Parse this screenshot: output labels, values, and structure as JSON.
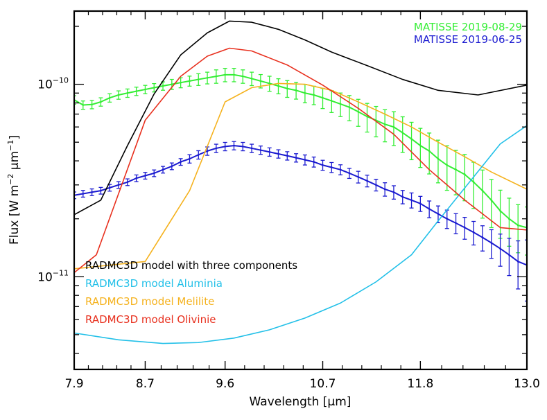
{
  "chart_data": {
    "type": "line",
    "xlabel": "Wavelength [μm]",
    "ylabel_parts": [
      "Flux [W m",
      "−2",
      " μm",
      "−1",
      "]"
    ],
    "xscale": "linear",
    "yscale": "log",
    "xlim": [
      7.9,
      13.0
    ],
    "ylim": [
      3.3e-12,
      2.4e-10
    ],
    "x_ticks": [
      7.9,
      8.7,
      9.6,
      10.7,
      11.8,
      13.0
    ],
    "x_tick_labels": [
      "7.9",
      "8.7",
      "9.6",
      "10.7",
      "11.8",
      "13.0"
    ],
    "y_major_ticks": [
      1e-11,
      1e-10
    ],
    "y_tick_labels": [
      {
        "value": 1e-11,
        "base": "10",
        "exp": "−11"
      },
      {
        "value": 1e-10,
        "base": "10",
        "exp": "−10"
      }
    ],
    "legend_top_right": [
      {
        "label": "MATISSE 2019-08-29",
        "color": "#33ee33"
      },
      {
        "label": "MATISSE 2019-06-25",
        "color": "#1a1ad0"
      }
    ],
    "legend_bottom_left": [
      {
        "label": "RADMC3D model with three components",
        "color": "#000000"
      },
      {
        "label": "RADMC3D model Aluminia",
        "color": "#22c0e8"
      },
      {
        "label": "RADMC3D model Melilite",
        "color": "#f5b21e"
      },
      {
        "label": "RADMC3D model Olivinie",
        "color": "#e8301e"
      }
    ],
    "series": [
      {
        "name": "RADMC3D model with three components",
        "color": "#000000",
        "x": [
          7.9,
          8.2,
          8.5,
          8.8,
          9.1,
          9.4,
          9.65,
          9.9,
          10.2,
          10.5,
          10.8,
          11.2,
          11.6,
          12.0,
          12.45,
          13.0
        ],
        "y": [
          2.1e-11,
          2.5e-11,
          4.8e-11,
          8.9e-11,
          1.42e-10,
          1.85e-10,
          2.13e-10,
          2.1e-10,
          1.93e-10,
          1.7e-10,
          1.47e-10,
          1.25e-10,
          1.06e-10,
          9.3e-11,
          8.8e-11,
          9.9e-11
        ]
      },
      {
        "name": "RADMC3D model Aluminia",
        "color": "#22c0e8",
        "x": [
          7.9,
          8.4,
          8.9,
          9.3,
          9.7,
          10.1,
          10.5,
          10.9,
          11.3,
          11.7,
          12.0,
          12.4,
          12.7,
          13.0
        ],
        "y": [
          5.1e-12,
          4.7e-12,
          4.5e-12,
          4.55e-12,
          4.8e-12,
          5.3e-12,
          6.1e-12,
          7.3e-12,
          9.4e-12,
          1.3e-11,
          1.95e-11,
          3.3e-11,
          4.9e-11,
          6.1e-11
        ]
      },
      {
        "name": "RADMC3D model Melilite",
        "color": "#f5b21e",
        "x": [
          7.9,
          8.7,
          9.2,
          9.6,
          9.9,
          10.2,
          10.5,
          10.8,
          11.1,
          11.4,
          11.7,
          12.0,
          12.3,
          12.6,
          13.0
        ],
        "y": [
          1.1e-11,
          1.2e-11,
          2.8e-11,
          8.1e-11,
          9.6e-11,
          1.01e-10,
          1e-10,
          9.3e-11,
          8.1e-11,
          7e-11,
          6e-11,
          5e-11,
          4.2e-11,
          3.5e-11,
          2.85e-11
        ]
      },
      {
        "name": "RADMC3D model Olivinie",
        "color": "#e8301e",
        "x": [
          7.9,
          8.15,
          8.7,
          9.1,
          9.4,
          9.65,
          9.9,
          10.3,
          10.7,
          11.1,
          11.5,
          11.9,
          12.3,
          12.7,
          13.0
        ],
        "y": [
          1.05e-11,
          1.3e-11,
          6.5e-11,
          1.1e-10,
          1.4e-10,
          1.54e-10,
          1.49e-10,
          1.26e-10,
          9.9e-11,
          7.5e-11,
          5.5e-11,
          3.6e-11,
          2.5e-11,
          1.8e-11,
          1.75e-11
        ]
      },
      {
        "name": "MATISSE 2019-08-29",
        "color": "#33ee33",
        "x": [
          7.9,
          8.0,
          8.1,
          8.2,
          8.3,
          8.4,
          8.5,
          8.6,
          8.7,
          8.8,
          8.9,
          9.0,
          9.1,
          9.2,
          9.3,
          9.4,
          9.5,
          9.6,
          9.7,
          9.8,
          9.9,
          10.0,
          10.1,
          10.2,
          10.3,
          10.4,
          10.5,
          10.6,
          10.7,
          10.8,
          10.9,
          11.0,
          11.1,
          11.2,
          11.3,
          11.4,
          11.5,
          11.6,
          11.7,
          11.8,
          11.9,
          12.0,
          12.1,
          12.2,
          12.3,
          12.4,
          12.5,
          12.6,
          12.7,
          12.8,
          12.9,
          13.0
        ],
        "y": [
          8.3e-11,
          7.8e-11,
          7.85e-11,
          8.1e-11,
          8.5e-11,
          8.8e-11,
          9e-11,
          9.2e-11,
          9.4e-11,
          9.6e-11,
          9.8e-11,
          1e-10,
          1.02e-10,
          1.04e-10,
          1.06e-10,
          1.08e-10,
          1.1e-10,
          1.12e-10,
          1.12e-10,
          1.1e-10,
          1.07e-10,
          1.04e-10,
          1.01e-10,
          9.8e-11,
          9.5e-11,
          9.3e-11,
          9e-11,
          8.8e-11,
          8.5e-11,
          8.2e-11,
          7.9e-11,
          7.6e-11,
          7.2e-11,
          6.8e-11,
          6.5e-11,
          6.2e-11,
          6e-11,
          5.6e-11,
          5.2e-11,
          4.8e-11,
          4.5e-11,
          4.1e-11,
          3.8e-11,
          3.6e-11,
          3.4e-11,
          3.1e-11,
          2.8e-11,
          2.5e-11,
          2.2e-11,
          2e-11,
          1.85e-11,
          1.8e-11
        ],
        "err_frac": [
          0.05,
          0.05,
          0.05,
          0.05,
          0.05,
          0.05,
          0.05,
          0.05,
          0.05,
          0.05,
          0.05,
          0.06,
          0.06,
          0.06,
          0.07,
          0.07,
          0.08,
          0.08,
          0.08,
          0.08,
          0.08,
          0.08,
          0.09,
          0.09,
          0.1,
          0.1,
          0.11,
          0.11,
          0.12,
          0.13,
          0.14,
          0.15,
          0.16,
          0.17,
          0.18,
          0.19,
          0.2,
          0.21,
          0.22,
          0.23,
          0.24,
          0.25,
          0.26,
          0.26,
          0.27,
          0.27,
          0.28,
          0.28,
          0.28,
          0.28,
          0.28,
          0.28
        ]
      },
      {
        "name": "MATISSE 2019-06-25",
        "color": "#1a1ad0",
        "x": [
          7.9,
          8.0,
          8.1,
          8.2,
          8.3,
          8.4,
          8.5,
          8.6,
          8.7,
          8.8,
          8.9,
          9.0,
          9.1,
          9.2,
          9.3,
          9.4,
          9.5,
          9.6,
          9.7,
          9.8,
          9.9,
          10.0,
          10.1,
          10.2,
          10.3,
          10.4,
          10.5,
          10.6,
          10.7,
          10.8,
          10.9,
          11.0,
          11.1,
          11.2,
          11.3,
          11.4,
          11.5,
          11.6,
          11.7,
          11.8,
          11.9,
          12.0,
          12.1,
          12.2,
          12.3,
          12.4,
          12.5,
          12.6,
          12.7,
          12.8,
          12.9,
          13.0
        ],
        "y": [
          2.65e-11,
          2.7e-11,
          2.75e-11,
          2.8e-11,
          2.9e-11,
          3e-11,
          3.1e-11,
          3.25e-11,
          3.35e-11,
          3.45e-11,
          3.6e-11,
          3.75e-11,
          3.95e-11,
          4.1e-11,
          4.3e-11,
          4.5e-11,
          4.65e-11,
          4.75e-11,
          4.8e-11,
          4.75e-11,
          4.65e-11,
          4.55e-11,
          4.45e-11,
          4.35e-11,
          4.25e-11,
          4.15e-11,
          4.05e-11,
          3.95e-11,
          3.8e-11,
          3.7e-11,
          3.6e-11,
          3.45e-11,
          3.3e-11,
          3.15e-11,
          3e-11,
          2.85e-11,
          2.75e-11,
          2.6e-11,
          2.5e-11,
          2.4e-11,
          2.25e-11,
          2.12e-11,
          2e-11,
          1.9e-11,
          1.8e-11,
          1.7e-11,
          1.6e-11,
          1.5e-11,
          1.4e-11,
          1.3e-11,
          1.2e-11,
          1.15e-11
        ],
        "err_frac": [
          0.04,
          0.04,
          0.04,
          0.04,
          0.04,
          0.04,
          0.04,
          0.04,
          0.04,
          0.04,
          0.04,
          0.04,
          0.04,
          0.05,
          0.05,
          0.05,
          0.05,
          0.05,
          0.05,
          0.05,
          0.05,
          0.05,
          0.05,
          0.05,
          0.05,
          0.05,
          0.06,
          0.06,
          0.06,
          0.06,
          0.06,
          0.06,
          0.07,
          0.07,
          0.07,
          0.08,
          0.08,
          0.08,
          0.09,
          0.09,
          0.1,
          0.1,
          0.11,
          0.12,
          0.13,
          0.14,
          0.15,
          0.17,
          0.19,
          0.22,
          0.28,
          0.35
        ]
      }
    ]
  }
}
